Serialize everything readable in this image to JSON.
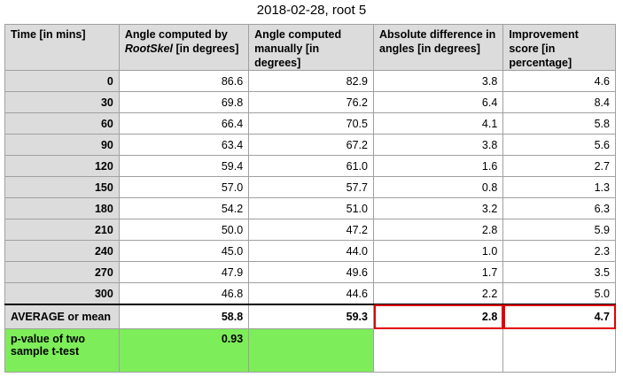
{
  "title": "2018-02-28, root 5",
  "table": {
    "headers": {
      "time": "Time [in mins]",
      "auto_pre": "Angle computed by",
      "auto_tool": "RootSkel",
      "auto_post": "[in degrees]",
      "manual": "Angle computed manually [in degrees]",
      "abs_diff": "Absolute difference in angles  [in degrees]",
      "improvement": "Improvement score [in percentage]"
    },
    "rows": [
      {
        "time": "0",
        "auto": "86.6",
        "manual": "82.9",
        "diff": "3.8",
        "improvement": "4.6"
      },
      {
        "time": "30",
        "auto": "69.8",
        "manual": "76.2",
        "diff": "6.4",
        "improvement": "8.4"
      },
      {
        "time": "60",
        "auto": "66.4",
        "manual": "70.5",
        "diff": "4.1",
        "improvement": "5.8"
      },
      {
        "time": "90",
        "auto": "63.4",
        "manual": "67.2",
        "diff": "3.8",
        "improvement": "5.6"
      },
      {
        "time": "120",
        "auto": "59.4",
        "manual": "61.0",
        "diff": "1.6",
        "improvement": "2.7"
      },
      {
        "time": "150",
        "auto": "57.0",
        "manual": "57.7",
        "diff": "0.8",
        "improvement": "1.3"
      },
      {
        "time": "180",
        "auto": "54.2",
        "manual": "51.0",
        "diff": "3.2",
        "improvement": "6.3"
      },
      {
        "time": "210",
        "auto": "50.0",
        "manual": "47.2",
        "diff": "2.8",
        "improvement": "5.9"
      },
      {
        "time": "240",
        "auto": "45.0",
        "manual": "44.0",
        "diff": "1.0",
        "improvement": "2.3"
      },
      {
        "time": "270",
        "auto": "47.9",
        "manual": "49.6",
        "diff": "1.7",
        "improvement": "3.5"
      },
      {
        "time": "300",
        "auto": "46.8",
        "manual": "44.6",
        "diff": "2.2",
        "improvement": "5.0"
      }
    ],
    "average": {
      "label": "AVERAGE or mean",
      "auto": "58.8",
      "manual": "59.3",
      "diff": "2.8",
      "improvement": "4.7"
    },
    "pvalue": {
      "label": "p-value of two sample t-test",
      "value": "0.93"
    }
  },
  "colors": {
    "header_bg": "#dcdcdc",
    "highlight_green": "#7ded5a",
    "highlight_red": "#e00000"
  }
}
